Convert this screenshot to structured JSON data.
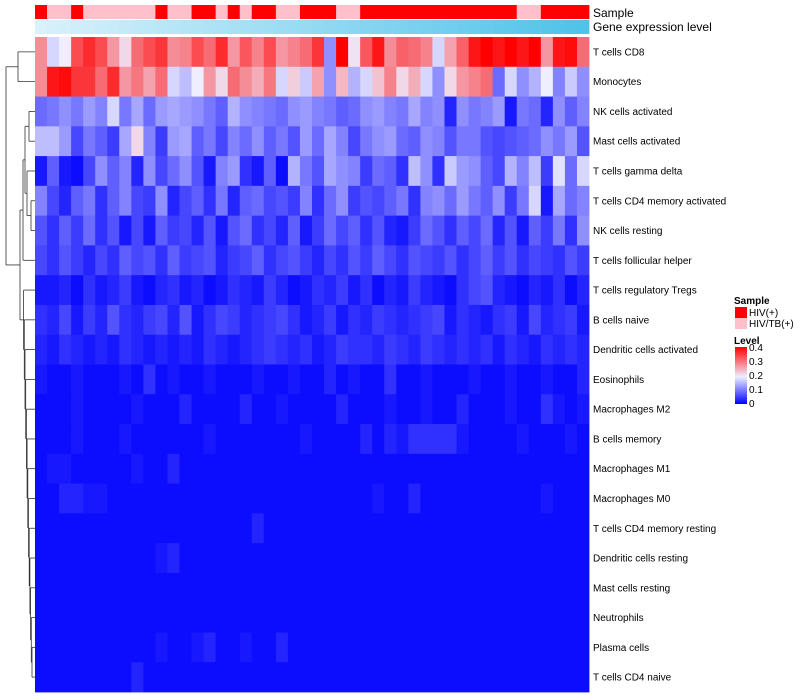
{
  "chart_data": {
    "type": "heatmap",
    "title": "",
    "annotation_tracks": [
      "Sample",
      "Gene expression level"
    ],
    "row_labels": [
      "T cells CD8",
      "Monocytes",
      "NK cells activated",
      "Mast cells activated",
      "T cells gamma delta",
      "T cells CD4 memory activated",
      "NK cells resting",
      "T cells follicular helper",
      "T cells regulatory  Tregs",
      "B cells naive",
      "Dendritic cells activated",
      "Eosinophils",
      "Macrophages M2",
      "B cells memory",
      "Macrophages M1",
      "Macrophages M0",
      "T cells CD4 memory resting",
      "Dendritic cells resting",
      "Mast cells resting",
      "Neutrophils",
      "Plasma cells",
      "T cells CD4 naive"
    ],
    "n_samples": 46,
    "sample_groups": [
      "HIV(+)",
      "HIV/TB(+)",
      "HIV/TB(+)",
      "HIV(+)",
      "HIV/TB(+)",
      "HIV/TB(+)",
      "HIV/TB(+)",
      "HIV/TB(+)",
      "HIV/TB(+)",
      "HIV/TB(+)",
      "HIV(+)",
      "HIV/TB(+)",
      "HIV/TB(+)",
      "HIV(+)",
      "HIV(+)",
      "HIV/TB(+)",
      "HIV(+)",
      "HIV/TB(+)",
      "HIV(+)",
      "HIV(+)",
      "HIV/TB(+)",
      "HIV/TB(+)",
      "HIV(+)",
      "HIV(+)",
      "HIV(+)",
      "HIV/TB(+)",
      "HIV/TB(+)",
      "HIV(+)",
      "HIV(+)",
      "HIV(+)",
      "HIV(+)",
      "HIV(+)",
      "HIV(+)",
      "HIV(+)",
      "HIV(+)",
      "HIV(+)",
      "HIV(+)",
      "HIV(+)",
      "HIV(+)",
      "HIV(+)",
      "HIV/TB(+)",
      "HIV/TB(+)",
      "HIV(+)",
      "HIV(+)",
      "HIV(+)",
      "HIV(+)"
    ],
    "gene_expression_level_band": "low to high (light to saturated blue)",
    "values": [
      [
        0.29,
        0.18,
        0.2,
        0.35,
        0.38,
        0.35,
        0.28,
        0.22,
        0.32,
        0.35,
        0.37,
        0.29,
        0.3,
        0.35,
        0.32,
        0.38,
        0.28,
        0.34,
        0.3,
        0.35,
        0.28,
        0.3,
        0.32,
        0.37,
        0.12,
        0.42,
        0.21,
        0.34,
        0.4,
        0.29,
        0.33,
        0.32,
        0.3,
        0.18,
        0.27,
        0.33,
        0.4,
        0.42,
        0.4,
        0.42,
        0.4,
        0.42,
        0.28,
        0.4,
        0.41,
        0.32
      ],
      [
        0.29,
        0.4,
        0.41,
        0.37,
        0.37,
        0.32,
        0.38,
        0.28,
        0.31,
        0.27,
        0.32,
        0.18,
        0.16,
        0.2,
        0.28,
        0.22,
        0.32,
        0.29,
        0.26,
        0.31,
        0.18,
        0.23,
        0.17,
        0.27,
        0.12,
        0.25,
        0.15,
        0.18,
        0.24,
        0.3,
        0.22,
        0.26,
        0.18,
        0.12,
        0.22,
        0.28,
        0.3,
        0.32,
        0.09,
        0.18,
        0.12,
        0.15,
        0.2,
        0.11,
        0.17,
        0.12
      ],
      [
        0.09,
        0.1,
        0.12,
        0.1,
        0.13,
        0.11,
        0.18,
        0.1,
        0.14,
        0.09,
        0.13,
        0.14,
        0.13,
        0.12,
        0.1,
        0.08,
        0.15,
        0.12,
        0.11,
        0.1,
        0.09,
        0.12,
        0.13,
        0.11,
        0.1,
        0.08,
        0.09,
        0.12,
        0.13,
        0.11,
        0.1,
        0.14,
        0.11,
        0.12,
        0.03,
        0.12,
        0.1,
        0.11,
        0.13,
        0.02,
        0.1,
        0.09,
        0.03,
        0.12,
        0.08,
        0.11
      ],
      [
        0.16,
        0.16,
        0.13,
        0.06,
        0.1,
        0.08,
        0.05,
        0.14,
        0.22,
        0.11,
        0.05,
        0.13,
        0.14,
        0.08,
        0.1,
        0.06,
        0.11,
        0.09,
        0.12,
        0.08,
        0.1,
        0.07,
        0.13,
        0.09,
        0.14,
        0.11,
        0.06,
        0.1,
        0.12,
        0.13,
        0.09,
        0.08,
        0.12,
        0.11,
        0.07,
        0.1,
        0.1,
        0.07,
        0.06,
        0.07,
        0.08,
        0.09,
        0.12,
        0.1,
        0.13,
        0.07
      ],
      [
        0.02,
        0.08,
        0.02,
        0.01,
        0.06,
        0.12,
        0.08,
        0.11,
        0.03,
        0.12,
        0.06,
        0.09,
        0.12,
        0.07,
        0.02,
        0.11,
        0.13,
        0.04,
        0.02,
        0.08,
        0.01,
        0.15,
        0.1,
        0.07,
        0.14,
        0.12,
        0.11,
        0.05,
        0.09,
        0.08,
        0.04,
        0.16,
        0.12,
        0.04,
        0.17,
        0.13,
        0.12,
        0.08,
        0.06,
        0.15,
        0.11,
        0.16,
        0.05,
        0.19,
        0.09,
        0.18
      ],
      [
        0.11,
        0.06,
        0.03,
        0.08,
        0.1,
        0.04,
        0.08,
        0.11,
        0.06,
        0.05,
        0.12,
        0.03,
        0.06,
        0.08,
        0.04,
        0.1,
        0.03,
        0.08,
        0.09,
        0.06,
        0.07,
        0.05,
        0.11,
        0.04,
        0.09,
        0.12,
        0.05,
        0.07,
        0.06,
        0.08,
        0.1,
        0.04,
        0.11,
        0.12,
        0.09,
        0.13,
        0.1,
        0.08,
        0.12,
        0.05,
        0.1,
        0.18,
        0.02,
        0.14,
        0.09,
        0.11
      ],
      [
        0.07,
        0.04,
        0.08,
        0.05,
        0.09,
        0.04,
        0.07,
        0.02,
        0.06,
        0.02,
        0.08,
        0.05,
        0.06,
        0.03,
        0.07,
        0.02,
        0.07,
        0.09,
        0.04,
        0.06,
        0.03,
        0.08,
        0.02,
        0.05,
        0.09,
        0.06,
        0.08,
        0.04,
        0.07,
        0.03,
        0.02,
        0.05,
        0.09,
        0.07,
        0.04,
        0.08,
        0.06,
        0.09,
        0.03,
        0.07,
        0.02,
        0.08,
        0.05,
        0.1,
        0.04,
        0.12
      ],
      [
        0.06,
        0.04,
        0.07,
        0.05,
        0.03,
        0.06,
        0.04,
        0.08,
        0.06,
        0.07,
        0.04,
        0.08,
        0.05,
        0.06,
        0.07,
        0.03,
        0.05,
        0.06,
        0.08,
        0.04,
        0.06,
        0.07,
        0.05,
        0.03,
        0.06,
        0.04,
        0.07,
        0.05,
        0.08,
        0.06,
        0.04,
        0.07,
        0.06,
        0.05,
        0.07,
        0.04,
        0.06,
        0.08,
        0.05,
        0.07,
        0.04,
        0.06,
        0.05,
        0.04,
        0.07,
        0.05
      ],
      [
        0.02,
        0.02,
        0.03,
        0.01,
        0.04,
        0.02,
        0.03,
        0.05,
        0.02,
        0.01,
        0.03,
        0.04,
        0.02,
        0.03,
        0.01,
        0.02,
        0.04,
        0.03,
        0.02,
        0.05,
        0.03,
        0.01,
        0.02,
        0.04,
        0.03,
        0.05,
        0.02,
        0.04,
        0.01,
        0.03,
        0.02,
        0.05,
        0.03,
        0.02,
        0.01,
        0.04,
        0.06,
        0.07,
        0.03,
        0.02,
        0.01,
        0.03,
        0.02,
        0.04,
        0.01,
        0.03
      ],
      [
        0.04,
        0.03,
        0.06,
        0.02,
        0.05,
        0.03,
        0.07,
        0.04,
        0.03,
        0.05,
        0.06,
        0.03,
        0.07,
        0.02,
        0.04,
        0.06,
        0.05,
        0.03,
        0.04,
        0.05,
        0.06,
        0.04,
        0.02,
        0.03,
        0.05,
        0.02,
        0.04,
        0.03,
        0.05,
        0.04,
        0.03,
        0.04,
        0.05,
        0.06,
        0.02,
        0.04,
        0.03,
        0.02,
        0.04,
        0.05,
        0.02,
        0.06,
        0.03,
        0.04,
        0.05,
        0.02
      ],
      [
        0.03,
        0.02,
        0.04,
        0.03,
        0.02,
        0.03,
        0.02,
        0.04,
        0.03,
        0.02,
        0.03,
        0.02,
        0.03,
        0.02,
        0.04,
        0.03,
        0.02,
        0.03,
        0.04,
        0.05,
        0.04,
        0.03,
        0.04,
        0.02,
        0.03,
        0.05,
        0.04,
        0.04,
        0.03,
        0.05,
        0.04,
        0.03,
        0.05,
        0.04,
        0.03,
        0.04,
        0.03,
        0.04,
        0.02,
        0.04,
        0.03,
        0.02,
        0.04,
        0.03,
        0.04,
        0.03
      ],
      [
        0.02,
        0.01,
        0.01,
        0.02,
        0.01,
        0.01,
        0.01,
        0.02,
        0.01,
        0.04,
        0.01,
        0.02,
        0.01,
        0.01,
        0.02,
        0.01,
        0.01,
        0.01,
        0.02,
        0.01,
        0.01,
        0.02,
        0.01,
        0.01,
        0.03,
        0.01,
        0.02,
        0.01,
        0.01,
        0.04,
        0.01,
        0.01,
        0.02,
        0.01,
        0.01,
        0.01,
        0.02,
        0.01,
        0.01,
        0.02,
        0.01,
        0.01,
        0.02,
        0.01,
        0.01,
        0.03
      ],
      [
        0.01,
        0.01,
        0.01,
        0.02,
        0.01,
        0.01,
        0.01,
        0.01,
        0.02,
        0.01,
        0.01,
        0.01,
        0.03,
        0.01,
        0.01,
        0.01,
        0.01,
        0.03,
        0.01,
        0.01,
        0.02,
        0.01,
        0.01,
        0.01,
        0.01,
        0.03,
        0.01,
        0.01,
        0.01,
        0.02,
        0.01,
        0.01,
        0.02,
        0.01,
        0.01,
        0.03,
        0.01,
        0.01,
        0.01,
        0.02,
        0.01,
        0.01,
        0.04,
        0.02,
        0.01,
        0.02
      ],
      [
        0.01,
        0.01,
        0.01,
        0.02,
        0.01,
        0.01,
        0.01,
        0.02,
        0.01,
        0.01,
        0.01,
        0.01,
        0.01,
        0.01,
        0.02,
        0.01,
        0.01,
        0.01,
        0.01,
        0.01,
        0.01,
        0.01,
        0.02,
        0.01,
        0.01,
        0.01,
        0.01,
        0.03,
        0.01,
        0.03,
        0.02,
        0.04,
        0.04,
        0.04,
        0.04,
        0.02,
        0.01,
        0.01,
        0.01,
        0.01,
        0.02,
        0.01,
        0.01,
        0.01,
        0.02,
        0.01
      ],
      [
        0.01,
        0.02,
        0.02,
        0.01,
        0.01,
        0.01,
        0.01,
        0.01,
        0.02,
        0.01,
        0.01,
        0.03,
        0.01,
        0.01,
        0.01,
        0.01,
        0.01,
        0.01,
        0.01,
        0.01,
        0.01,
        0.01,
        0.01,
        0.01,
        0.01,
        0.01,
        0.01,
        0.01,
        0.01,
        0.01,
        0.01,
        0.01,
        0.01,
        0.01,
        0.01,
        0.01,
        0.01,
        0.01,
        0.01,
        0.01,
        0.01,
        0.01,
        0.01,
        0.01,
        0.01,
        0.01
      ],
      [
        0.01,
        0.01,
        0.03,
        0.03,
        0.02,
        0.02,
        0.01,
        0.01,
        0.01,
        0.01,
        0.01,
        0.01,
        0.01,
        0.01,
        0.01,
        0.01,
        0.01,
        0.01,
        0.01,
        0.01,
        0.01,
        0.01,
        0.01,
        0.01,
        0.01,
        0.01,
        0.01,
        0.01,
        0.02,
        0.01,
        0.01,
        0.03,
        0.01,
        0.01,
        0.01,
        0.01,
        0.01,
        0.01,
        0.01,
        0.01,
        0.01,
        0.01,
        0.02,
        0.01,
        0.01,
        0.01
      ],
      [
        0.01,
        0.01,
        0.01,
        0.01,
        0.01,
        0.01,
        0.01,
        0.01,
        0.01,
        0.01,
        0.01,
        0.01,
        0.01,
        0.01,
        0.01,
        0.01,
        0.01,
        0.01,
        0.03,
        0.01,
        0.01,
        0.01,
        0.01,
        0.01,
        0.01,
        0.01,
        0.01,
        0.01,
        0.01,
        0.01,
        0.01,
        0.01,
        0.01,
        0.01,
        0.01,
        0.01,
        0.01,
        0.01,
        0.01,
        0.01,
        0.01,
        0.01,
        0.01,
        0.01,
        0.01,
        0.01
      ],
      [
        0.01,
        0.01,
        0.01,
        0.01,
        0.01,
        0.01,
        0.01,
        0.01,
        0.01,
        0.01,
        0.02,
        0.03,
        0.01,
        0.01,
        0.01,
        0.01,
        0.01,
        0.01,
        0.01,
        0.01,
        0.01,
        0.01,
        0.01,
        0.01,
        0.01,
        0.01,
        0.01,
        0.01,
        0.01,
        0.01,
        0.01,
        0.01,
        0.01,
        0.01,
        0.01,
        0.01,
        0.01,
        0.01,
        0.01,
        0.01,
        0.01,
        0.01,
        0.01,
        0.01,
        0.01,
        0.01
      ],
      [
        0.01,
        0.01,
        0.01,
        0.01,
        0.01,
        0.01,
        0.01,
        0.01,
        0.01,
        0.01,
        0.01,
        0.01,
        0.01,
        0.01,
        0.01,
        0.01,
        0.01,
        0.01,
        0.01,
        0.01,
        0.01,
        0.01,
        0.01,
        0.01,
        0.01,
        0.01,
        0.01,
        0.01,
        0.01,
        0.01,
        0.01,
        0.01,
        0.01,
        0.01,
        0.01,
        0.01,
        0.01,
        0.01,
        0.01,
        0.01,
        0.01,
        0.01,
        0.01,
        0.01,
        0.01,
        0.01
      ],
      [
        0.01,
        0.01,
        0.01,
        0.01,
        0.01,
        0.01,
        0.01,
        0.01,
        0.01,
        0.01,
        0.01,
        0.01,
        0.01,
        0.01,
        0.01,
        0.01,
        0.01,
        0.01,
        0.01,
        0.01,
        0.01,
        0.01,
        0.01,
        0.01,
        0.01,
        0.01,
        0.01,
        0.01,
        0.01,
        0.01,
        0.01,
        0.01,
        0.01,
        0.01,
        0.01,
        0.01,
        0.01,
        0.01,
        0.01,
        0.01,
        0.01,
        0.01,
        0.01,
        0.01,
        0.01,
        0.01
      ],
      [
        0.01,
        0.01,
        0.01,
        0.01,
        0.01,
        0.01,
        0.01,
        0.01,
        0.01,
        0.01,
        0.02,
        0.01,
        0.01,
        0.02,
        0.03,
        0.01,
        0.01,
        0.02,
        0.01,
        0.01,
        0.03,
        0.01,
        0.01,
        0.01,
        0.01,
        0.01,
        0.01,
        0.01,
        0.01,
        0.01,
        0.01,
        0.01,
        0.01,
        0.01,
        0.01,
        0.01,
        0.01,
        0.01,
        0.01,
        0.01,
        0.01,
        0.01,
        0.01,
        0.01,
        0.01,
        0.01
      ],
      [
        0.01,
        0.01,
        0.01,
        0.01,
        0.01,
        0.01,
        0.01,
        0.01,
        0.03,
        0.01,
        0.01,
        0.01,
        0.01,
        0.01,
        0.01,
        0.01,
        0.01,
        0.01,
        0.01,
        0.01,
        0.01,
        0.01,
        0.01,
        0.01,
        0.01,
        0.01,
        0.01,
        0.01,
        0.01,
        0.01,
        0.01,
        0.01,
        0.01,
        0.01,
        0.01,
        0.01,
        0.01,
        0.01,
        0.01,
        0.01,
        0.01,
        0.01,
        0.01,
        0.01,
        0.01,
        0.01
      ]
    ],
    "color_scale": {
      "min": 0,
      "max": 0.42,
      "stops": [
        {
          "value": 0,
          "color": "#0000ff"
        },
        {
          "value": 0.2,
          "color": "#eeeeff"
        },
        {
          "value": 0.42,
          "color": "#ff0000"
        }
      ],
      "ticks": [
        0,
        0.1,
        0.2,
        0.3,
        0.4
      ]
    },
    "legend": {
      "sample_title": "Sample",
      "sample_entries": [
        {
          "label": "HIV(+)",
          "color": "#ff0000"
        },
        {
          "label": "HIV/TB(+)",
          "color": "#ffc0cb"
        }
      ],
      "level_title": "Level",
      "level_tick_labels": [
        "0",
        "0.1",
        "0.2",
        "0.3",
        "0.4"
      ]
    },
    "gene_band_colors": {
      "start": "#d9f1fa",
      "end": "#4fc3ea"
    }
  }
}
